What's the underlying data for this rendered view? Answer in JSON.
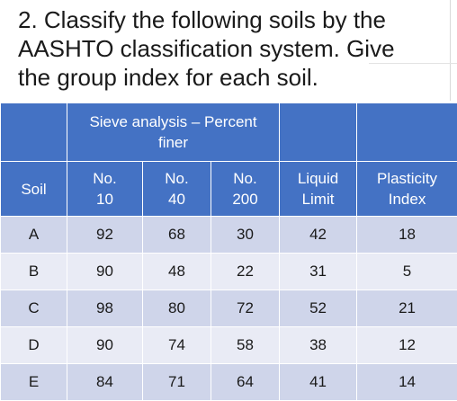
{
  "question": {
    "lines": [
      "2. Classify the following soils by the",
      "AASHTO classification system. Give",
      "the group index for each soil."
    ]
  },
  "table": {
    "group_header": [
      "Sieve analysis – Percent",
      "finer"
    ],
    "headers": {
      "soil": "Soil",
      "no10": [
        "No.",
        "10"
      ],
      "no40": [
        "No.",
        "40"
      ],
      "no200": [
        "No.",
        "200"
      ],
      "ll": [
        "Liquid",
        "Limit"
      ],
      "pi": [
        "Plasticity",
        "Index"
      ]
    },
    "rows": [
      {
        "soil": "A",
        "no10": "92",
        "no40": "68",
        "no200": "30",
        "ll": "42",
        "pi": "18"
      },
      {
        "soil": "B",
        "no10": "90",
        "no40": "48",
        "no200": "22",
        "ll": "31",
        "pi": "5"
      },
      {
        "soil": "C",
        "no10": "98",
        "no40": "80",
        "no200": "72",
        "ll": "52",
        "pi": "21"
      },
      {
        "soil": "D",
        "no10": "90",
        "no40": "74",
        "no200": "58",
        "ll": "38",
        "pi": "12"
      },
      {
        "soil": "E",
        "no10": "84",
        "no40": "71",
        "no200": "64",
        "ll": "41",
        "pi": "14"
      }
    ]
  },
  "colors": {
    "header_bg": "#4472c4",
    "row_odd": "#cfd5ea",
    "row_even": "#e9ebf5"
  }
}
